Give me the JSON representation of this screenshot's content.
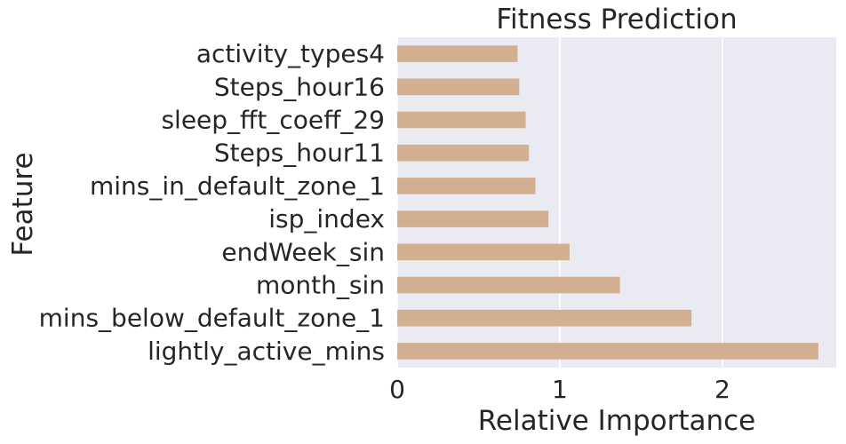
{
  "chart_data": {
    "type": "bar",
    "orientation": "horizontal",
    "title": "Fitness Prediction",
    "xlabel": "Relative Importance",
    "ylabel": "Feature",
    "xlim": [
      0,
      2.7
    ],
    "xticks": [
      0,
      1,
      2
    ],
    "grid": true,
    "colors": {
      "bar": "#D2AF91",
      "plot_background": "#EAEAF2",
      "grid": "#FFFFFF"
    },
    "categories": [
      "lightly_active_mins",
      "mins_below_default_zone_1",
      "month_sin",
      "endWeek_sin",
      "isp_index",
      "mins_in_default_zone_1",
      "Steps_hour11",
      "sleep_fft_coeff_29",
      "Steps_hour16",
      "activity_types4"
    ],
    "values": [
      2.59,
      1.81,
      1.37,
      1.06,
      0.93,
      0.85,
      0.81,
      0.79,
      0.75,
      0.74
    ]
  }
}
